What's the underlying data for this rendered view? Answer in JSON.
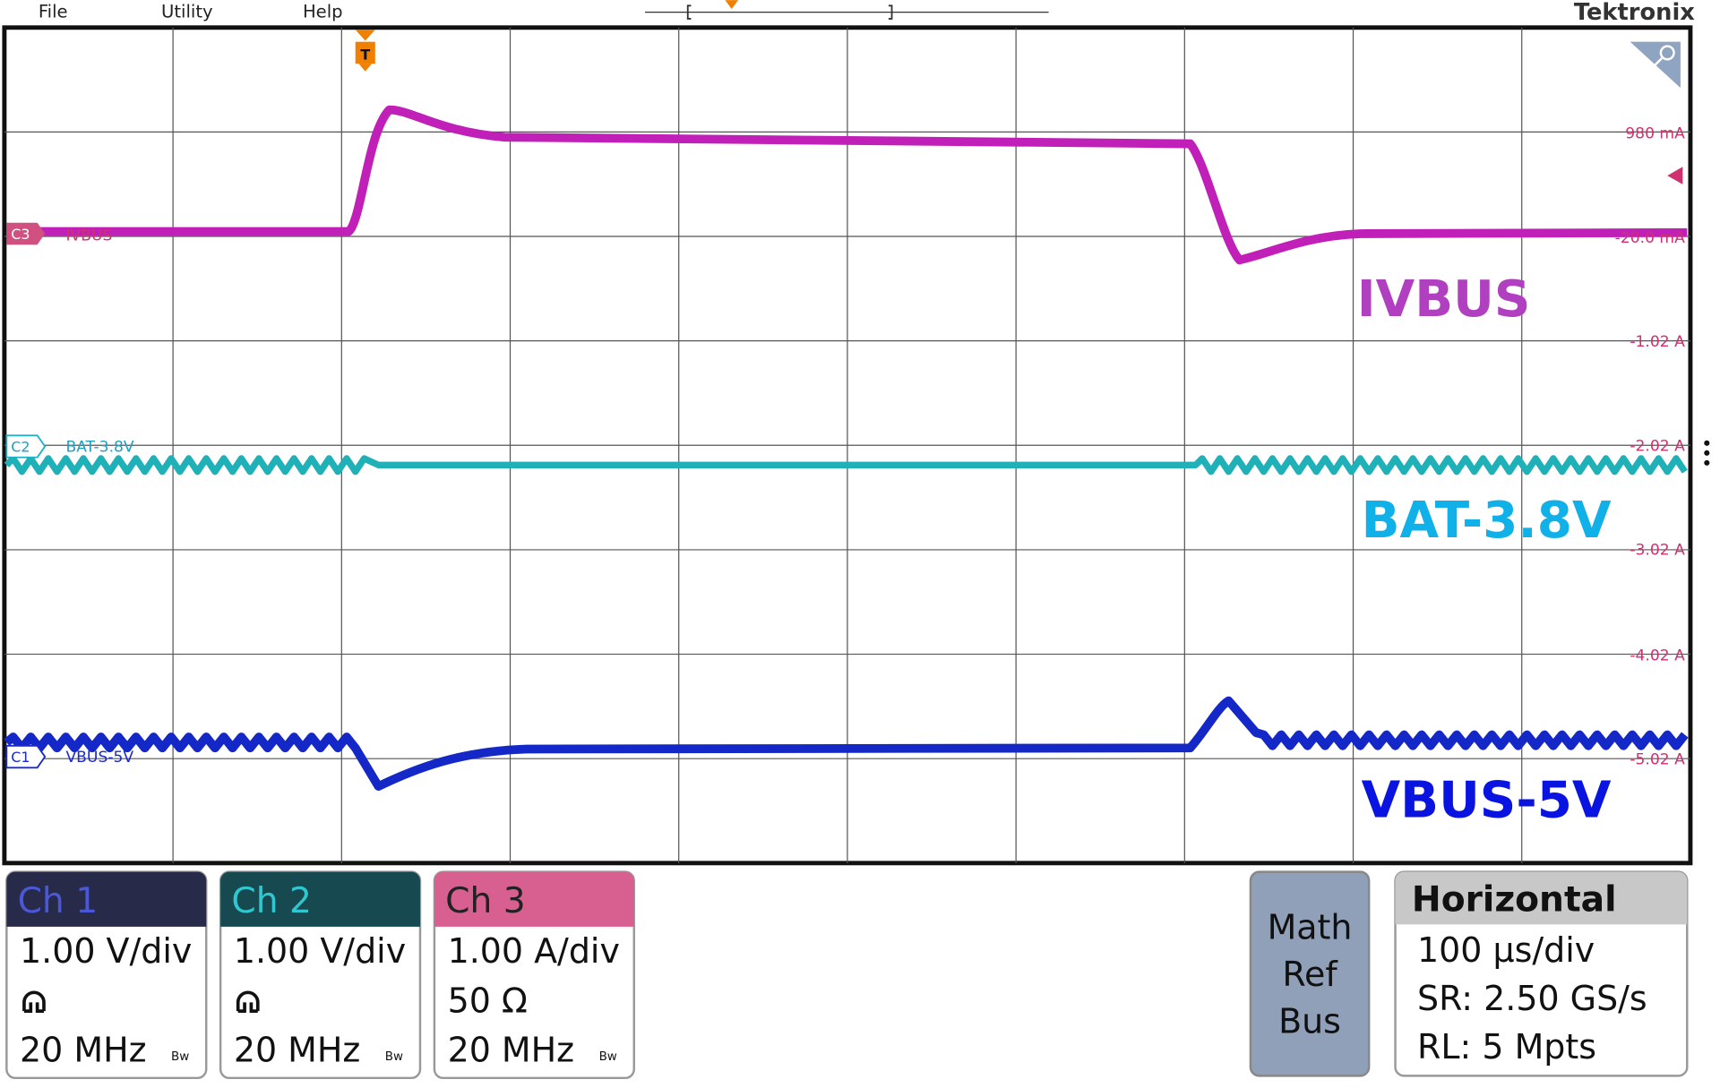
{
  "menu": [
    "File",
    "Utility",
    "Help"
  ],
  "brand": "Tektronix",
  "trigger_label": "T",
  "scale_labels": [
    "980 mA",
    "-20.0 mA",
    "-1.02 A",
    "-2.02 A",
    "-3.02 A",
    "-4.02 A",
    "-5.02 A"
  ],
  "channel_markers": [
    {
      "id": "C3",
      "label": "IVBUS"
    },
    {
      "id": "C2",
      "label": "BAT-3.8V"
    },
    {
      "id": "C1",
      "label": "VBUS-5V"
    }
  ],
  "annotations": [
    "IVBUS",
    "BAT-3.8V",
    "VBUS-5V"
  ],
  "bandwidth_icon": "Bw",
  "channels": [
    {
      "title": "Ch 1",
      "scale": "1.00 V/div",
      "bandwidth": "20 MHz"
    },
    {
      "title": "Ch 2",
      "scale": "1.00 V/div",
      "bandwidth": "20 MHz"
    },
    {
      "title": "Ch 3",
      "scale": "1.00 A/div",
      "termination": "50 Ω",
      "bandwidth": "20 MHz"
    }
  ],
  "side_panel": [
    "Math",
    "Ref",
    "Bus"
  ],
  "horizontal": {
    "title": "Horizontal",
    "lines": [
      "100 µs/div",
      "SR: 2.50 GS/s",
      "RL: 5 Mpts"
    ]
  }
}
